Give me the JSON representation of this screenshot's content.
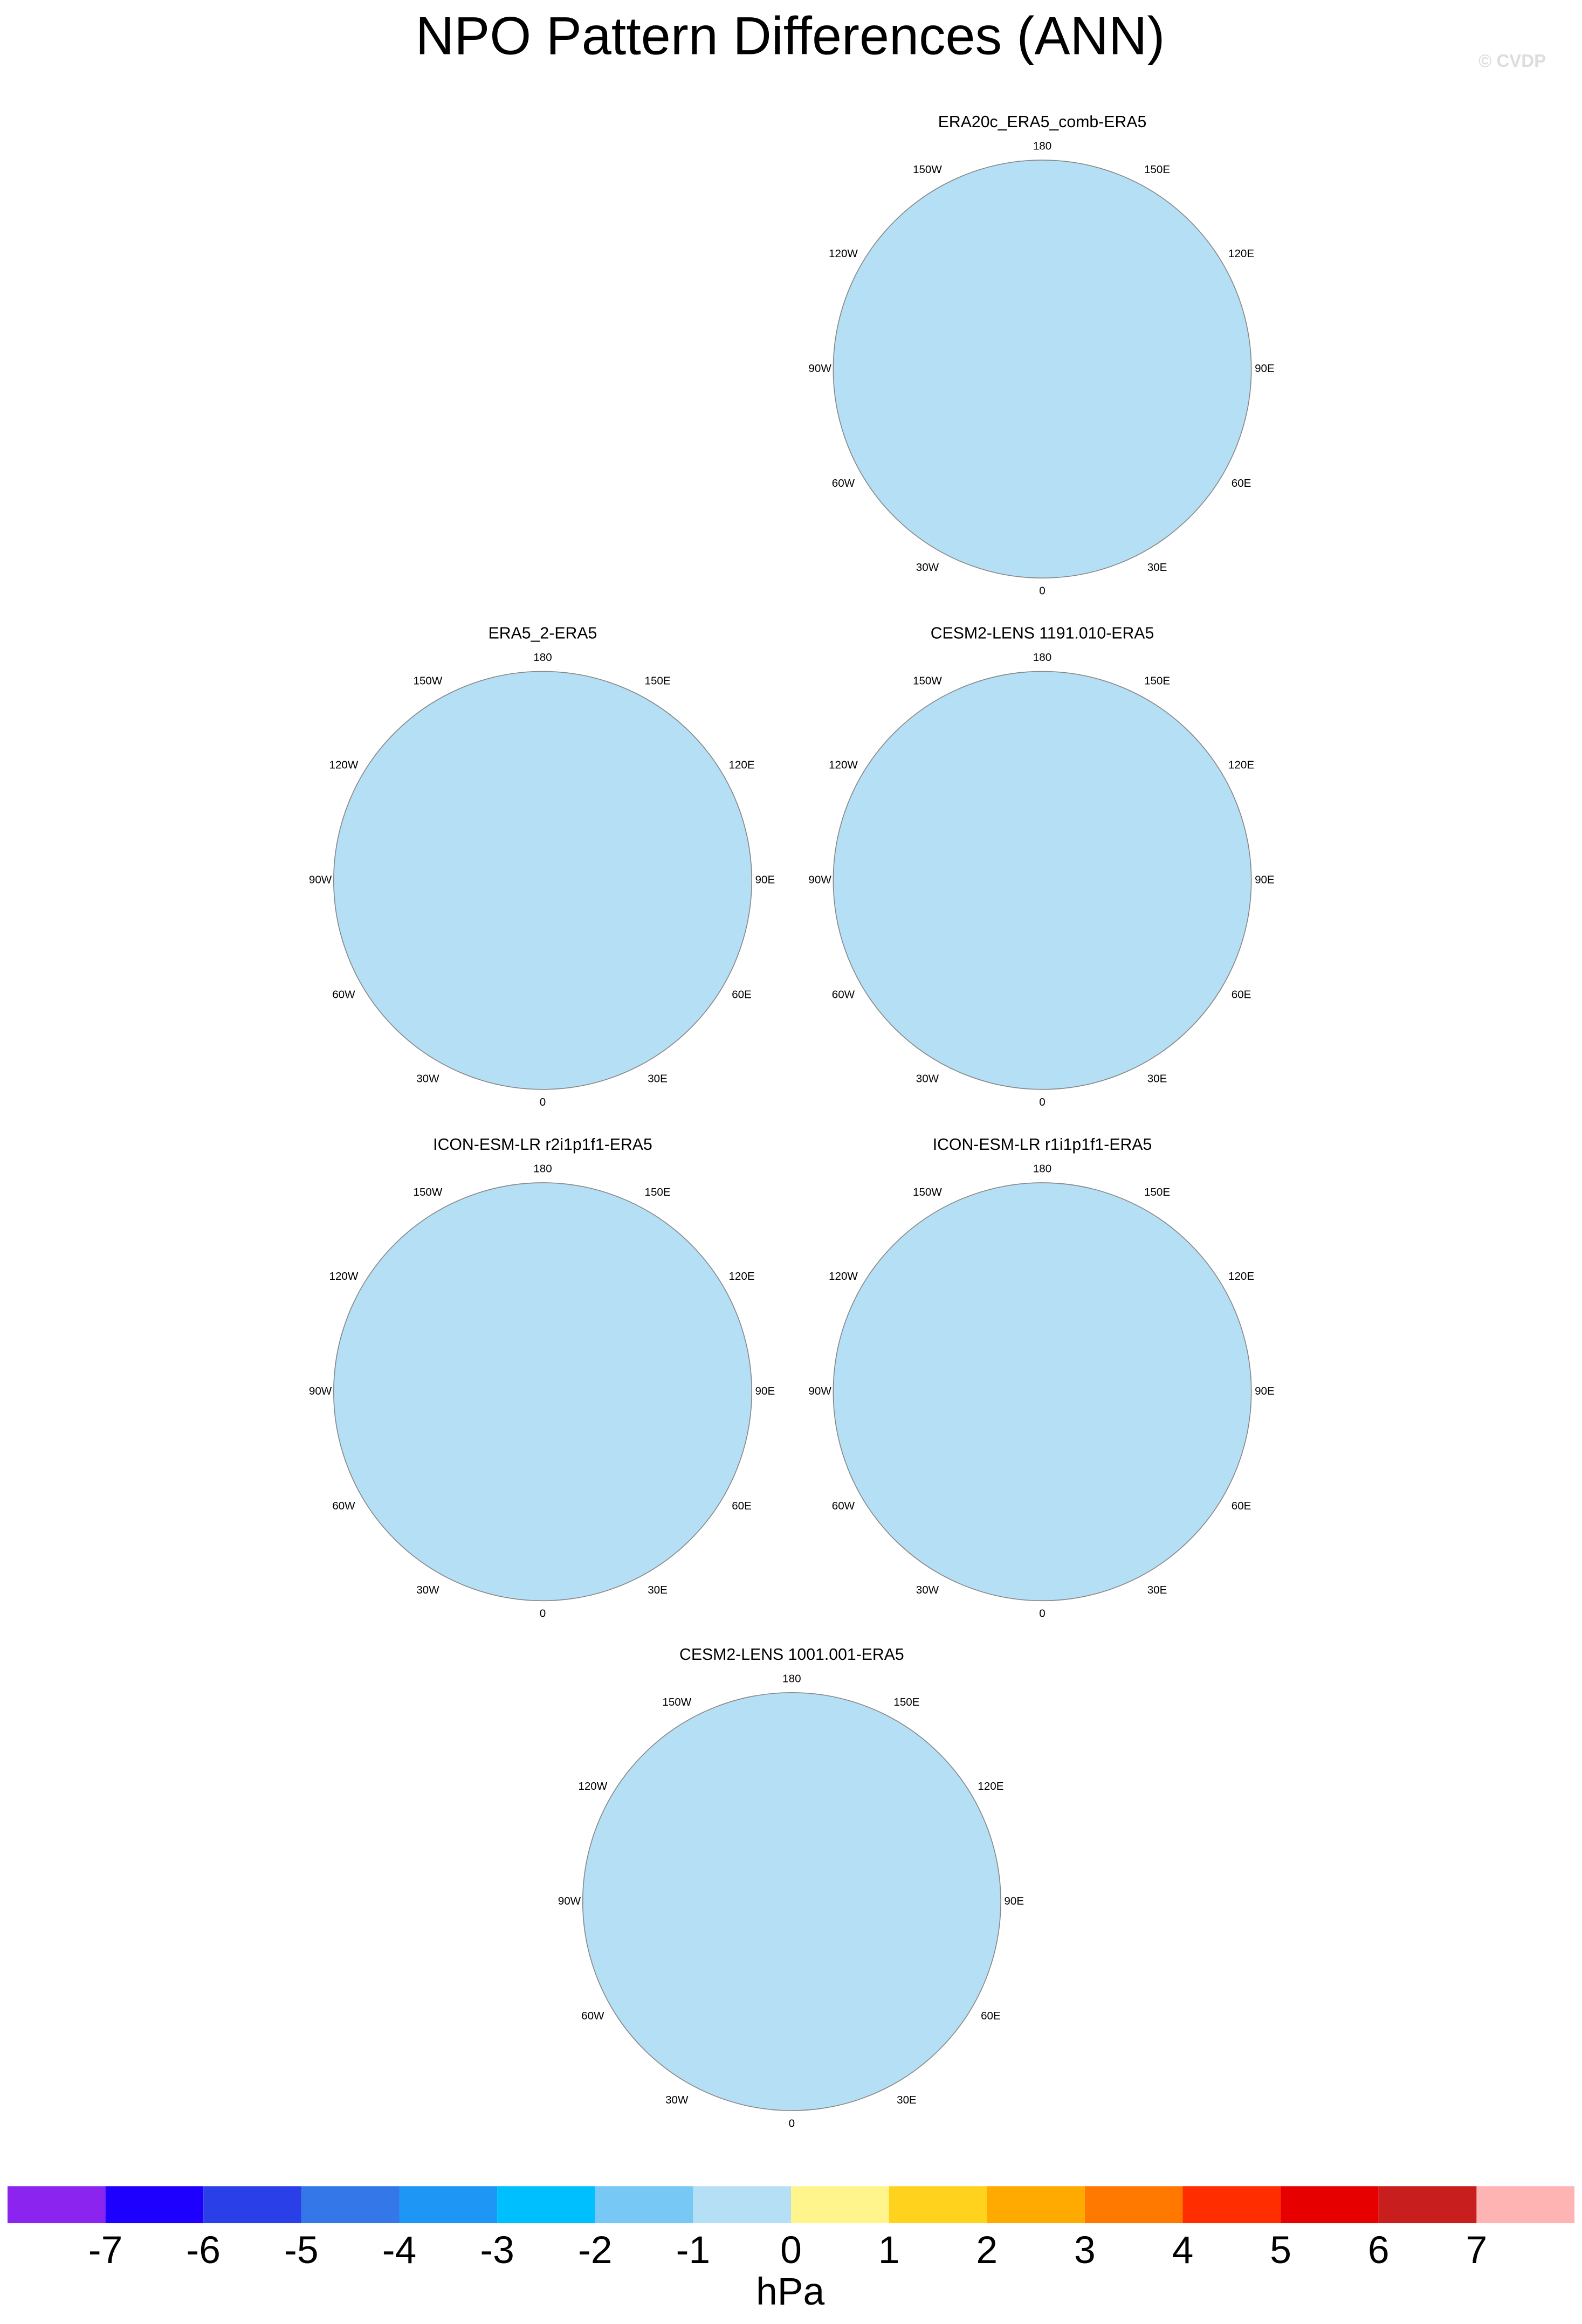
{
  "title": "NPO Pattern Differences (ANN)",
  "watermark": "© CVDP",
  "lon_labels": [
    "180",
    "150E",
    "120E",
    "90E",
    "60E",
    "30E",
    "0",
    "30W",
    "60W",
    "90W",
    "120W",
    "150W"
  ],
  "panels": [
    {
      "title": "ERA20c_ERA5_comb-ERA5"
    },
    {
      "title": "ERA5_2-ERA5"
    },
    {
      "title": "CESM2-LENS 1191.010-ERA5"
    },
    {
      "title": "ICON-ESM-LR r2i1p1f1-ERA5"
    },
    {
      "title": "ICON-ESM-LR r1i1p1f1-ERA5"
    },
    {
      "title": "CESM2-LENS 1001.001-ERA5"
    }
  ],
  "colorbar": {
    "levels": [
      -7,
      -6,
      -5,
      -4,
      -3,
      -2,
      -1,
      0,
      1,
      2,
      3,
      4,
      5,
      6,
      7
    ],
    "colors": [
      "#8c24f0",
      "#1e00ff",
      "#2b3fe8",
      "#3377e8",
      "#1e96f5",
      "#00bfff",
      "#78c8f5",
      "#b4dff5",
      "#fff58c",
      "#ffd21e",
      "#ffaa00",
      "#ff7800",
      "#ff2d00",
      "#e60000",
      "#c81e1e",
      "#ffb4b4"
    ],
    "unit": "hPa"
  }
}
